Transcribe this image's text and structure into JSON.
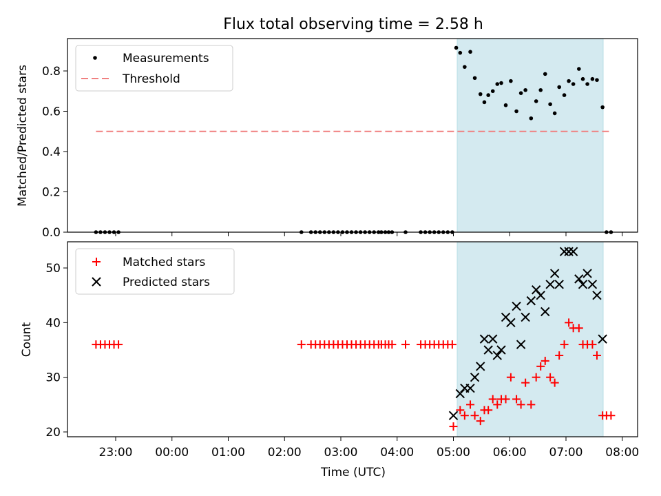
{
  "chart_data": [
    {
      "type": "scatter",
      "title": "Flux total observing time = 2.58 h",
      "xlabel": "",
      "ylabel": "Matched/Predicted stars",
      "ylim": [
        0,
        0.96
      ],
      "yticks": [
        "0.0",
        "0.2",
        "0.4",
        "0.6",
        "0.8"
      ],
      "legend_position": "upper-left",
      "shaded_interval_hours": [
        5.05,
        7.65
      ],
      "shade_color": "#d4eaf0",
      "series": [
        {
          "name": "Measurements",
          "marker": "dot",
          "color": "#000000",
          "x": [
            22.65,
            22.73,
            22.81,
            22.89,
            22.97,
            23.05,
            2.3,
            2.47,
            2.55,
            2.63,
            2.71,
            2.79,
            2.87,
            2.95,
            3.03,
            3.11,
            3.19,
            3.27,
            3.35,
            3.43,
            3.51,
            3.59,
            3.67,
            3.72,
            3.79,
            3.85,
            3.91,
            4.15,
            4.42,
            4.5,
            4.58,
            4.66,
            4.74,
            4.82,
            4.9,
            4.98,
            5.05,
            5.12,
            5.2,
            5.3,
            5.38,
            5.48,
            5.55,
            5.62,
            5.7,
            5.78,
            5.85,
            5.93,
            6.02,
            6.12,
            6.2,
            6.28,
            6.38,
            6.47,
            6.55,
            6.63,
            6.72,
            6.8,
            6.88,
            6.97,
            7.05,
            7.13,
            7.23,
            7.3,
            7.38,
            7.47,
            7.55,
            7.65,
            7.72,
            7.8
          ],
          "y": [
            0,
            0,
            0,
            0,
            0,
            0,
            0,
            0,
            0,
            0,
            0,
            0,
            0,
            0,
            0,
            0,
            0,
            0,
            0,
            0,
            0,
            0,
            0,
            0,
            0,
            0,
            0,
            0,
            0,
            0,
            0,
            0,
            0,
            0,
            0,
            0,
            0.915,
            0.89,
            0.82,
            0.895,
            0.765,
            0.685,
            0.645,
            0.68,
            0.7,
            0.735,
            0.74,
            0.63,
            0.75,
            0.6,
            0.69,
            0.705,
            0.565,
            0.65,
            0.705,
            0.785,
            0.635,
            0.59,
            0.72,
            0.68,
            0.75,
            0.735,
            0.81,
            0.76,
            0.735,
            0.76,
            0.755,
            0.62,
            0,
            0
          ]
        },
        {
          "name": "Threshold",
          "marker": "dashed-line",
          "color": "#f08080",
          "x": [
            22.65,
            7.82
          ],
          "y": [
            0.5,
            0.5
          ]
        }
      ]
    },
    {
      "type": "scatter",
      "xlabel": "Time (UTC)",
      "ylabel": "Count",
      "ylim": [
        19.5,
        54.5
      ],
      "yticks": [
        "20",
        "30",
        "40",
        "50"
      ],
      "xticks": [
        "23:00",
        "00:00",
        "01:00",
        "02:00",
        "03:00",
        "04:00",
        "05:00",
        "06:00",
        "07:00",
        "08:00"
      ],
      "legend_position": "upper-left",
      "shaded_interval_hours": [
        5.05,
        7.65
      ],
      "series": [
        {
          "name": "Matched stars",
          "marker": "plus",
          "color": "#ff0000",
          "x": [
            22.65,
            22.73,
            22.81,
            22.89,
            22.97,
            23.05,
            2.3,
            2.47,
            2.55,
            2.63,
            2.71,
            2.79,
            2.87,
            2.95,
            3.03,
            3.11,
            3.19,
            3.27,
            3.35,
            3.43,
            3.51,
            3.59,
            3.67,
            3.72,
            3.79,
            3.85,
            3.91,
            4.15,
            4.42,
            4.5,
            4.58,
            4.66,
            4.74,
            4.82,
            4.9,
            4.98,
            5.0,
            5.12,
            5.2,
            5.3,
            5.38,
            5.48,
            5.55,
            5.62,
            5.7,
            5.78,
            5.85,
            5.93,
            6.02,
            6.12,
            6.2,
            6.28,
            6.38,
            6.47,
            6.55,
            6.63,
            6.72,
            6.8,
            6.88,
            6.97,
            7.05,
            7.13,
            7.23,
            7.3,
            7.38,
            7.47,
            7.55,
            7.65,
            7.72,
            7.8
          ],
          "y": [
            36,
            36,
            36,
            36,
            36,
            36,
            36,
            36,
            36,
            36,
            36,
            36,
            36,
            36,
            36,
            36,
            36,
            36,
            36,
            36,
            36,
            36,
            36,
            36,
            36,
            36,
            36,
            36,
            36,
            36,
            36,
            36,
            36,
            36,
            36,
            36,
            21,
            24,
            23,
            25,
            23,
            22,
            24,
            24,
            26,
            25,
            26,
            26,
            30,
            26,
            25,
            29,
            25,
            30,
            32,
            33,
            30,
            29,
            34,
            36,
            40,
            39,
            39,
            36,
            36,
            36,
            34,
            23,
            23,
            23
          ]
        },
        {
          "name": "Predicted stars",
          "marker": "x",
          "color": "#000000",
          "x": [
            5.0,
            5.12,
            5.2,
            5.3,
            5.38,
            5.48,
            5.55,
            5.62,
            5.7,
            5.78,
            5.85,
            5.93,
            6.02,
            6.12,
            6.2,
            6.28,
            6.38,
            6.47,
            6.55,
            6.63,
            6.72,
            6.8,
            6.88,
            6.97,
            7.05,
            7.13,
            7.23,
            7.3,
            7.38,
            7.47,
            7.55,
            7.65
          ],
          "y": [
            23,
            27,
            28,
            28,
            30,
            32,
            37,
            35,
            37,
            34,
            35,
            41,
            40,
            43,
            36,
            41,
            44,
            46,
            45,
            42,
            47,
            49,
            47,
            53,
            53,
            53,
            48,
            47,
            49,
            47,
            45,
            37
          ]
        }
      ]
    }
  ]
}
